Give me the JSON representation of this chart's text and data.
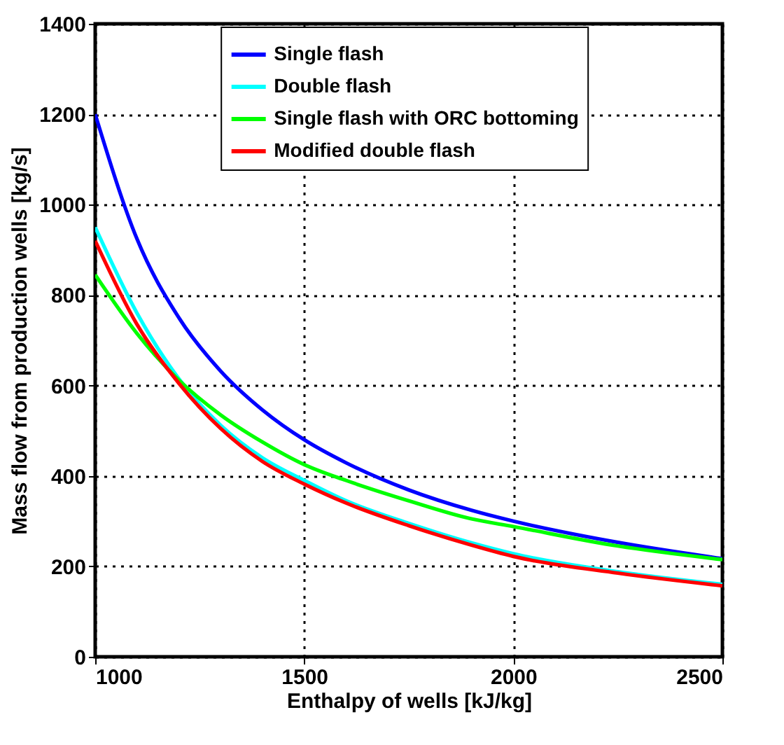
{
  "chart_data": {
    "type": "line",
    "xlabel": "Enthalpy of wells [kJ/kg]",
    "ylabel": "Mass flow from production wells [kg/s]",
    "x": [
      1000,
      1100,
      1200,
      1300,
      1400,
      1500,
      1600,
      1750,
      1900,
      2000,
      2250,
      2500
    ],
    "series": [
      {
        "name": "Single flash",
        "color": "#0000ff",
        "values": [
          1200,
          924,
          750,
          632,
          546,
          480,
          429,
          369,
          324,
          300,
          253,
          217
        ]
      },
      {
        "name": "Double flash",
        "color": "#00ffff",
        "values": [
          950,
          760,
          615,
          512,
          440,
          390,
          345,
          295,
          252,
          228,
          188,
          160
        ]
      },
      {
        "name": "Single flash with ORC bottoming",
        "color": "#00ff00",
        "values": [
          845,
          715,
          612,
          535,
          475,
          425,
          390,
          345,
          305,
          288,
          245,
          215
        ]
      },
      {
        "name": "Modified double flash",
        "color": "#ff0000",
        "values": [
          920,
          735,
          605,
          505,
          432,
          382,
          340,
          290,
          247,
          222,
          185,
          157
        ]
      }
    ],
    "xlim": [
      1000,
      2500
    ],
    "xticks": [
      1000,
      1500,
      2000,
      2500
    ],
    "ylim": [
      0,
      1400
    ],
    "yticks": [
      0,
      200,
      400,
      600,
      800,
      1000,
      1200,
      1400
    ],
    "grid": true,
    "legend": "top",
    "line_style": "solid",
    "marker": "none"
  }
}
